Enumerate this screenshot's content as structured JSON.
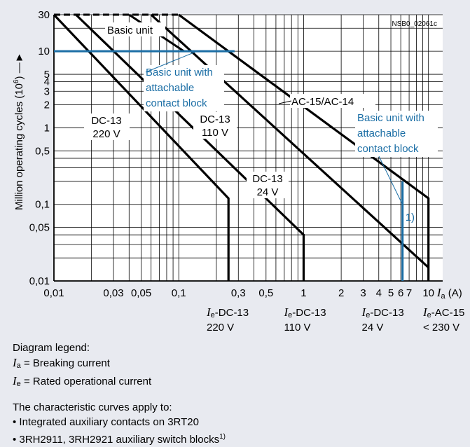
{
  "chart_data": {
    "type": "line",
    "code": "NSB0_02061c",
    "ylabel": "Million operating cycles (10",
    "ylabel_sup": "6",
    "ylabel_tail": ")",
    "xlabel_symbol": "I",
    "xlabel_sub": "a",
    "xlabel_unit": "(A)",
    "x_scale": "log",
    "y_scale": "log",
    "xlim": [
      0.01,
      13
    ],
    "ylim": [
      0.01,
      30
    ],
    "grid": true,
    "x_ticks": [
      {
        "v": 0.01,
        "t": "0,01"
      },
      {
        "v": 0.03,
        "t": "0,03"
      },
      {
        "v": 0.05,
        "t": "0,05"
      },
      {
        "v": 0.1,
        "t": "0,1"
      },
      {
        "v": 0.3,
        "t": "0,3"
      },
      {
        "v": 0.5,
        "t": "0,5"
      },
      {
        "v": 1,
        "t": "1"
      },
      {
        "v": 2,
        "t": "2"
      },
      {
        "v": 3,
        "t": "3"
      },
      {
        "v": 4,
        "t": "4"
      },
      {
        "v": 5,
        "t": "5"
      },
      {
        "v": 6,
        "t": "6"
      },
      {
        "v": 7,
        "t": "7"
      },
      {
        "v": 10,
        "t": "10"
      }
    ],
    "y_ticks": [
      {
        "v": 30,
        "t": "30"
      },
      {
        "v": 10,
        "t": "10"
      },
      {
        "v": 5,
        "t": "5"
      },
      {
        "v": 4,
        "t": "4"
      },
      {
        "v": 3,
        "t": "3"
      },
      {
        "v": 2,
        "t": "2"
      },
      {
        "v": 1,
        "t": "1"
      },
      {
        "v": 0.5,
        "t": "0,5"
      },
      {
        "v": 0.1,
        "t": "0,1"
      },
      {
        "v": 0.05,
        "t": "0,05"
      },
      {
        "v": 0.01,
        "t": "0,01"
      }
    ],
    "series": [
      {
        "name": "DC-13 220 V",
        "points": [
          [
            0.01,
            30
          ],
          [
            0.25,
            0.12
          ],
          [
            0.25,
            0.01
          ]
        ]
      },
      {
        "name": "DC-13 110 V",
        "points": [
          [
            0.015,
            30
          ],
          [
            1,
            0.04
          ],
          [
            1,
            0.01
          ]
        ]
      },
      {
        "name": "DC-13 24 V",
        "points": [
          [
            0.06,
            30
          ],
          [
            10,
            0.015
          ]
        ]
      },
      {
        "name": "AC-15/AC-14",
        "points": [
          [
            0.1,
            30
          ],
          [
            10,
            0.12
          ],
          [
            10,
            0.01
          ]
        ]
      },
      {
        "name": "Basic unit",
        "points": [
          [
            0.04,
            30
          ],
          [
            0.11,
            10
          ]
        ],
        "style": "thin"
      },
      {
        "name": "Basic unit cap",
        "points": [
          [
            0.01,
            30
          ],
          [
            0.1,
            30
          ]
        ],
        "style": "dashed"
      },
      {
        "name": "Basic unit with attachable contact block",
        "points": [
          [
            0.01,
            10
          ],
          [
            0.28,
            10
          ]
        ],
        "style": "blue"
      },
      {
        "name": "Basic unit with attachable contact block (vertical)",
        "points": [
          [
            6.2,
            0.2
          ],
          [
            6.2,
            0.01
          ]
        ],
        "style": "blue"
      }
    ],
    "annotations": {
      "basic_unit": "Basic unit",
      "blue_top": [
        "Basic unit with",
        "attachable",
        "contact block"
      ],
      "blue_right": [
        "Basic unit with",
        "attachable",
        "contact block"
      ],
      "dc13_220": [
        "DC-13",
        "220 V"
      ],
      "dc13_110": [
        "DC-13",
        "110 V"
      ],
      "dc13_24": [
        "DC-13",
        "24 V"
      ],
      "ac15": "AC-15/AC-14",
      "footnote": "1)"
    },
    "x_sub_labels": [
      {
        "sym": "I",
        "sub": "e",
        "tail": "-DC-13",
        "line2": "220 V"
      },
      {
        "sym": "I",
        "sub": "e",
        "tail": "-DC-13",
        "line2": "110 V"
      },
      {
        "sym": "I",
        "sub": "e",
        "tail": "-DC-13",
        "line2": "24 V"
      },
      {
        "sym": "I",
        "sub": "e",
        "tail": "-AC-15",
        "line2": "< 230 V"
      }
    ]
  },
  "legend": {
    "title": "Diagram legend:",
    "items": [
      {
        "sym": "I",
        "sub": "a",
        "text": " = Breaking current"
      },
      {
        "sym": "I",
        "sub": "e",
        "text": " = Rated operational current"
      }
    ]
  },
  "notes": {
    "title": "The characteristic curves apply to:",
    "items": [
      {
        "text": "• Integrated auxiliary contacts on 3RT20",
        "sup": ""
      },
      {
        "text": "• 3RH2911, 3RH2921 auxiliary switch blocks",
        "sup": "1)"
      }
    ]
  },
  "colors": {
    "blue": "#1b6ea5",
    "background": "#e8eaf0",
    "plot_bg": "#ffffff",
    "line": "#000000"
  }
}
